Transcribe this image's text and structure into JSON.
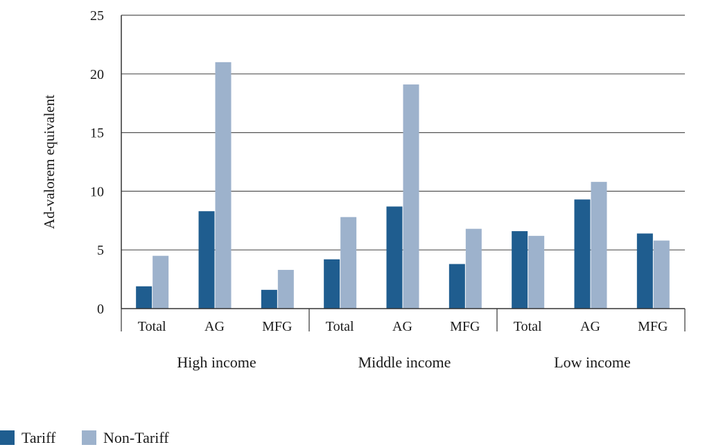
{
  "chart_data": {
    "type": "bar",
    "title": "",
    "ylabel": "Ad-valorem equivalent",
    "xlabel": "",
    "ylim": [
      0,
      25
    ],
    "yticks": [
      0,
      5,
      10,
      15,
      20,
      25
    ],
    "grid": true,
    "legend_position": "bottom-left",
    "groups": [
      "High income",
      "Middle income",
      "Low income"
    ],
    "categories": [
      "Total",
      "AG",
      "MFG"
    ],
    "series": [
      {
        "name": "Tariff",
        "color": "#1f5d8f",
        "values": [
          [
            1.9,
            8.3,
            1.6
          ],
          [
            4.2,
            8.7,
            3.8
          ],
          [
            6.6,
            9.3,
            6.4
          ]
        ]
      },
      {
        "name": "Non-Tariff",
        "color": "#9db2cc",
        "values": [
          [
            4.5,
            21.0,
            3.3
          ],
          [
            7.8,
            19.1,
            6.8
          ],
          [
            6.2,
            10.8,
            5.8
          ]
        ]
      }
    ]
  }
}
